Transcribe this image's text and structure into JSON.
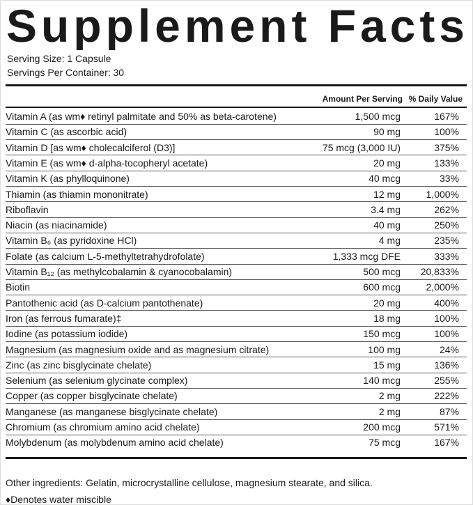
{
  "title": "Supplement Facts",
  "serving_size": "Serving Size: 1 Capsule",
  "servings_per_container": "Servings Per Container: 30",
  "table": {
    "header": [
      "Amount Per Serving",
      "% Daily Value"
    ],
    "rows": [
      [
        "Vitamin A (as wm♦ retinyl palmitate and 50% as beta-carotene)",
        "1,500 mcg",
        "167%"
      ],
      [
        "Vitamin C (as ascorbic acid)",
        "90 mg",
        "100%"
      ],
      [
        "Vitamin D [as wm♦ cholecalciferol (D3)]",
        "75 mcg (3,000 IU)",
        "375%"
      ],
      [
        "Vitamin E (as wm♦ d-alpha-tocopheryl acetate)",
        "20 mg",
        "133%"
      ],
      [
        "Vitamin K (as phylloquinone)",
        "40 mcg",
        "33%"
      ],
      [
        "Thiamin (as thiamin mononitrate)",
        "12 mg",
        "1,000%"
      ],
      [
        "Riboflavin",
        "3.4 mg",
        "262%"
      ],
      [
        "Niacin (as niacinamide)",
        "40 mg",
        "250%"
      ],
      [
        "Vitamin B₆ (as pyridoxine HCl)",
        "4 mg",
        "235%"
      ],
      [
        "Folate (as calcium L-5-methyltetrahydrofolate)",
        "1,333 mcg DFE",
        "333%"
      ],
      [
        "Vitamin B₁₂ (as methylcobalamin & cyanocobalamin)",
        "500 mcg",
        "20,833%"
      ],
      [
        "Biotin",
        "600 mcg",
        "2,000%"
      ],
      [
        "Pantothenic acid (as D-calcium pantothenate)",
        "20 mg",
        "400%"
      ],
      [
        "Iron (as ferrous fumarate)‡",
        "18 mg",
        "100%"
      ],
      [
        "Iodine (as potassium iodide)",
        "150 mcg",
        "100%"
      ],
      [
        "Magnesium (as magnesium oxide and as magnesium citrate)",
        "100 mg",
        "24%"
      ],
      [
        "Zinc (as zinc bisglycinate chelate)",
        "15 mg",
        "136%"
      ],
      [
        "Selenium (as selenium glycinate complex)",
        "140 mcg",
        "255%"
      ],
      [
        "Copper (as copper bisglycinate chelate)",
        "2 mg",
        "222%"
      ],
      [
        "Manganese (as manganese bisglycinate chelate)",
        "2 mg",
        "87%"
      ],
      [
        "Chromium (as chromium amino acid chelate)",
        "200 mcg",
        "571%"
      ],
      [
        "Molybdenum (as molybdenum amino acid chelate)",
        "75 mcg",
        "167%"
      ]
    ]
  },
  "other_ingredients": "Other ingredients: Gelatin, microcrystalline cellulose, magnesium stearate, and silica.",
  "footnote": "♦Denotes water miscible"
}
